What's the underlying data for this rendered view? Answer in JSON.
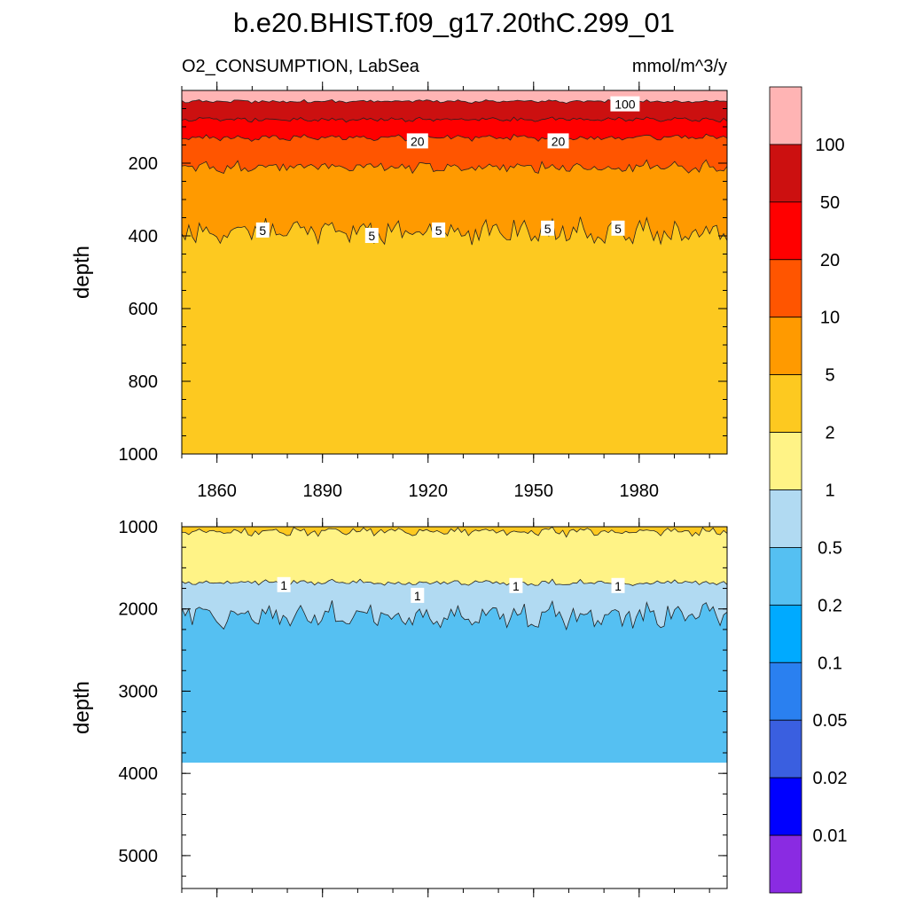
{
  "chart_data": {
    "type": "contour",
    "title": "b.e20.BHIST.f09_g17.20thC.299_01",
    "subtitle_left": "O2_CONSUMPTION, LabSea",
    "subtitle_right": "mmol/m^3/y",
    "x_range": [
      1850,
      2005
    ],
    "x_ticks": [
      1860,
      1890,
      1920,
      1950,
      1980
    ],
    "levels": [
      0.01,
      0.02,
      0.05,
      0.1,
      0.2,
      0.5,
      1,
      2,
      5,
      10,
      20,
      50,
      100
    ],
    "level_labels": [
      "0.01",
      "0.02",
      "0.05",
      "0.1",
      "0.2",
      "0.5",
      "1",
      "2",
      "5",
      "10",
      "20",
      "50",
      "100"
    ],
    "colors": [
      "#8a2be2",
      "#0000ff",
      "#3a5fe0",
      "#2a80f0",
      "#00aaff",
      "#55c0f2",
      "#b1daf2",
      "#fff386",
      "#fdc920",
      "#ff9a00",
      "#ff5500",
      "#ff0000",
      "#cc1010",
      "#ffb4b4"
    ],
    "panels": [
      {
        "name": "upper",
        "ylabel": "depth",
        "ylim": [
          1000,
          0
        ],
        "y_ticks": [
          200,
          400,
          600,
          800,
          1000
        ],
        "layers": [
          {
            "level_index": 13,
            "depth_range": [
              0,
              30
            ]
          },
          {
            "level_index": 12,
            "depth_range": [
              30,
              80
            ]
          },
          {
            "level_index": 11,
            "depth_range": [
              80,
              130
            ]
          },
          {
            "level_index": 10,
            "depth_range": [
              130,
              210
            ]
          },
          {
            "level_index": 9,
            "depth_range": [
              210,
              390
            ]
          },
          {
            "level_index": 8,
            "depth_range": [
              390,
              1000
            ]
          }
        ],
        "contour_labels": [
          {
            "text": "100",
            "x": 1976,
            "depth": 38
          },
          {
            "text": "20",
            "x": 1917,
            "depth": 140
          },
          {
            "text": "20",
            "x": 1957,
            "depth": 140
          },
          {
            "text": "5",
            "x": 1873,
            "depth": 385
          },
          {
            "text": "5",
            "x": 1904,
            "depth": 400
          },
          {
            "text": "5",
            "x": 1923,
            "depth": 385
          },
          {
            "text": "5",
            "x": 1954,
            "depth": 380
          },
          {
            "text": "5",
            "x": 1974,
            "depth": 380
          }
        ]
      },
      {
        "name": "lower",
        "ylabel": "depth",
        "ylim": [
          5400,
          1000
        ],
        "y_ticks": [
          1000,
          2000,
          3000,
          4000,
          5000
        ],
        "bottom_of_data": 3870,
        "layers": [
          {
            "level_index": 8,
            "depth_range": [
              1000,
              1060
            ]
          },
          {
            "level_index": 7,
            "depth_range": [
              1060,
              1680
            ]
          },
          {
            "level_index": 6,
            "depth_range": [
              1680,
              2080
            ]
          },
          {
            "level_index": 5,
            "depth_range": [
              2080,
              3870
            ]
          }
        ],
        "contour_labels": [
          {
            "text": "1",
            "x": 1879,
            "depth": 1710
          },
          {
            "text": "1",
            "x": 1917,
            "depth": 1840
          },
          {
            "text": "1",
            "x": 1945,
            "depth": 1720
          },
          {
            "text": "1",
            "x": 1974,
            "depth": 1720
          }
        ]
      }
    ]
  }
}
